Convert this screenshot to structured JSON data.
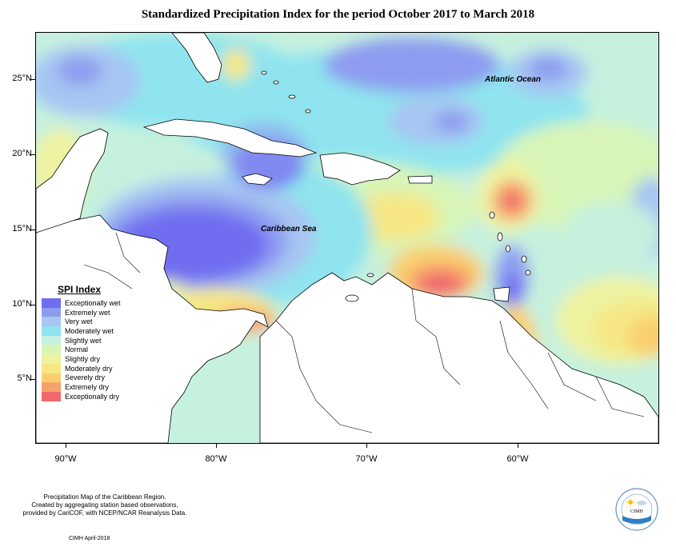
{
  "title": "Standardized Precipitation Index for the period October 2017 to March 2018",
  "axes": {
    "lat_labels": [
      "25°N",
      "20°N",
      "15°N",
      "10°N",
      "5°N"
    ],
    "lon_labels": [
      "90°W",
      "80°W",
      "70°W",
      "60°W"
    ]
  },
  "ocean_labels": {
    "atlantic": "Atlantic Ocean",
    "caribbean": "Caribbean Sea"
  },
  "legend": {
    "title": "SPI Index",
    "items": [
      {
        "label": "Exceptionally wet",
        "color": "#6f6df0"
      },
      {
        "label": "Extremely wet",
        "color": "#8e9cf0"
      },
      {
        "label": "Very wet",
        "color": "#a7c6f2"
      },
      {
        "label": "Moderately wet",
        "color": "#8fe4ef"
      },
      {
        "label": "Slightly wet",
        "color": "#c6f1de"
      },
      {
        "label": "Normal",
        "color": "#d8f5b8"
      },
      {
        "label": "Slightly dry",
        "color": "#eef3a0"
      },
      {
        "label": "Moderately dry",
        "color": "#f6e784"
      },
      {
        "label": "Severely dry",
        "color": "#f9cf6e"
      },
      {
        "label": "Extremely dry",
        "color": "#f7a26a"
      },
      {
        "label": "Exceptionally dry",
        "color": "#f0686e"
      }
    ]
  },
  "footer": {
    "line1": "Precipitation Map of the Caribbean Region.",
    "line2": "Created by aggregating station based observations,",
    "line3": "provided by CariCOF, with NCEP/NCAR Reanalysis Data.",
    "credit": "CIMH April-2018"
  },
  "logo": {
    "text": "CIMH"
  }
}
